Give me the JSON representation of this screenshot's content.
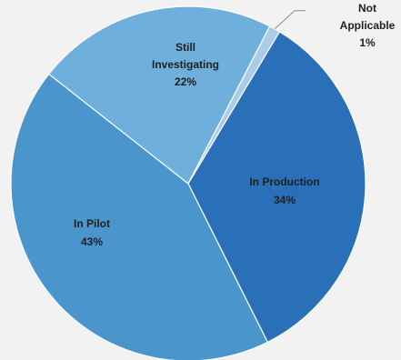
{
  "chart_data": {
    "type": "pie",
    "title": "",
    "slices": [
      {
        "label": "In Production",
        "value": 34,
        "display": "34%",
        "color": "#2a70b8"
      },
      {
        "label": "In Pilot",
        "value": 43,
        "display": "43%",
        "color": "#4a96cc"
      },
      {
        "label": "Still Investigating",
        "value": 22,
        "display": "22%",
        "color": "#6eafdc"
      },
      {
        "label": "Not Applicable",
        "value": 1,
        "display": "1%",
        "color": "#a9cde9"
      }
    ],
    "start_angle_deg": 31,
    "direction": "clockwise",
    "legend": "none",
    "labels": "inside, leader line for small slice"
  }
}
